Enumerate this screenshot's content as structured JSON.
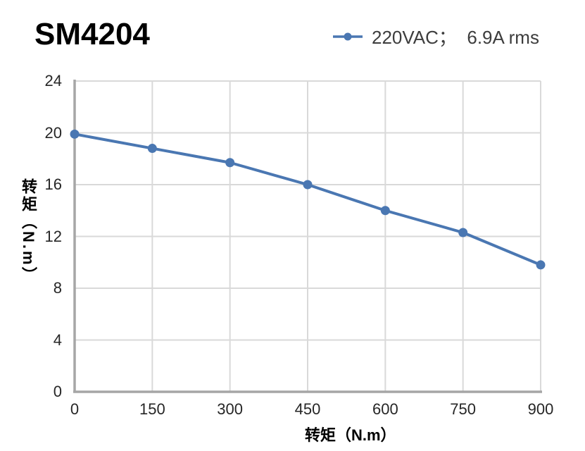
{
  "title": "SM4204",
  "legend": {
    "label": "220VAC；  6.9A rms"
  },
  "colors": {
    "series": "#4a77b2",
    "gridline": "#d9d9d9",
    "spine": "#a6a6a6",
    "tick_text": "#262626",
    "title_text": "#000000",
    "legend_text": "#3d3d3d"
  },
  "chart_data": {
    "type": "line",
    "title": "SM4204",
    "legend_entries": [
      "220VAC；  6.9A rms"
    ],
    "legend_position": "top-right",
    "x": [
      0,
      150,
      300,
      450,
      600,
      750,
      900
    ],
    "series": [
      {
        "name": "220VAC；  6.9A rms",
        "values": [
          19.9,
          18.8,
          17.7,
          16.0,
          14.0,
          12.3,
          9.8
        ]
      }
    ],
    "xlabel": "转矩（N.m）",
    "ylabel": "转矩（N.m）",
    "xticks": [
      0,
      150,
      300,
      450,
      600,
      750,
      900
    ],
    "yticks": [
      0,
      4,
      8,
      12,
      16,
      20,
      24
    ],
    "xlim": [
      0,
      900
    ],
    "ylim": [
      0,
      24
    ],
    "grid": true
  }
}
